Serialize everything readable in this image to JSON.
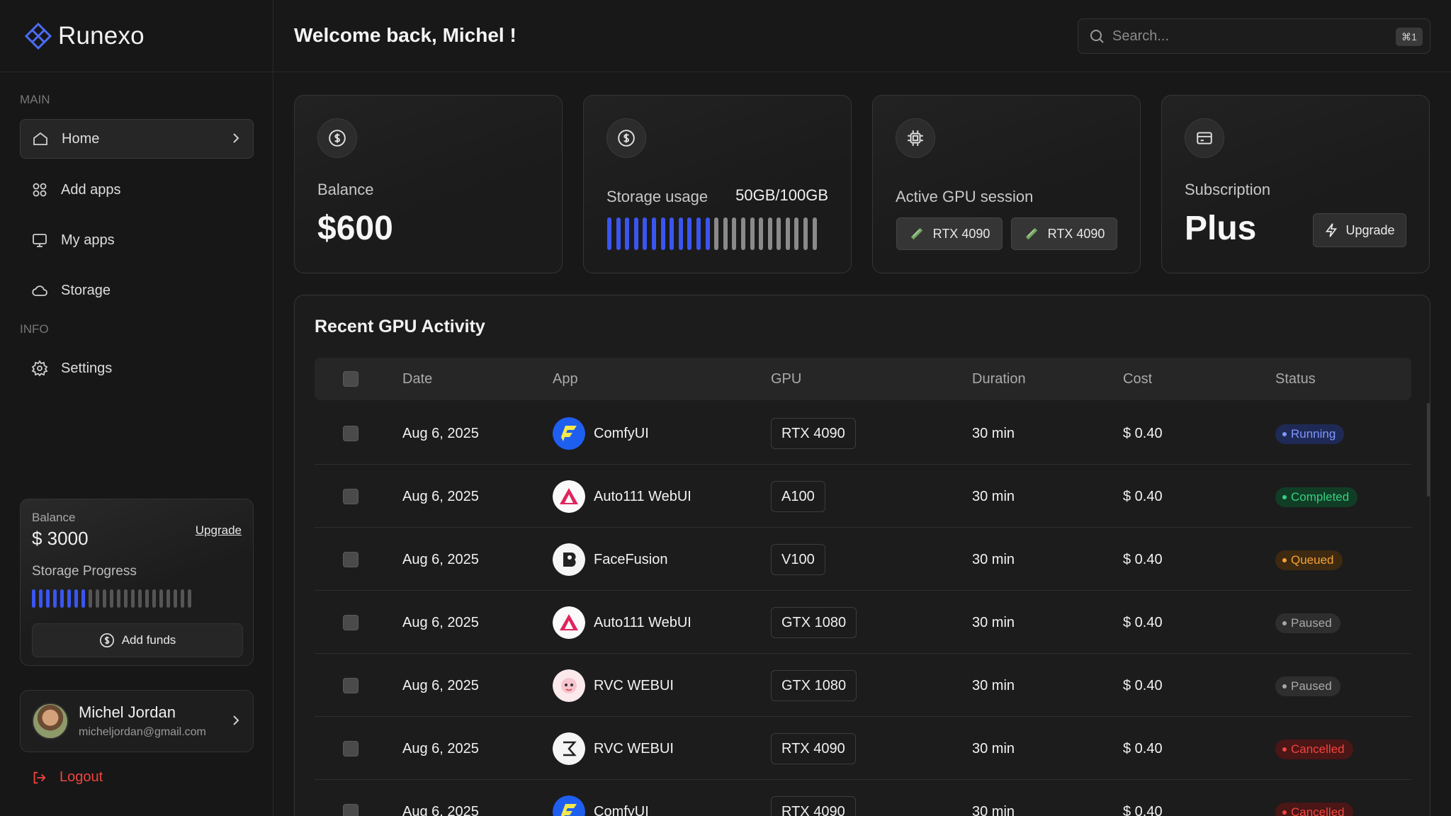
{
  "brand": {
    "name": "Runexo"
  },
  "header": {
    "welcome": "Welcome back, Michel !",
    "search_placeholder": "Search...",
    "search_shortcut": "⌘1"
  },
  "sidebar": {
    "main_label": "MAIN",
    "info_label": "INFO",
    "items": [
      {
        "label": "Home",
        "icon": "home-icon",
        "active": true
      },
      {
        "label": "Add apps",
        "icon": "grid-icon"
      },
      {
        "label": "My apps",
        "icon": "monitor-icon"
      },
      {
        "label": "Storage",
        "icon": "cloud-icon"
      },
      {
        "label": "Settings",
        "icon": "gear-icon"
      }
    ],
    "balance_card": {
      "label": "Balance",
      "amount": "$ 3000",
      "upgrade": "Upgrade",
      "storage_label": "Storage Progress",
      "storage_fraction": 0.35,
      "add_funds": "Add funds"
    },
    "user": {
      "name": "Michel Jordan",
      "email": "micheljordan@gmail.com"
    },
    "logout": "Logout"
  },
  "stats": {
    "balance": {
      "label": "Balance",
      "value": "$600"
    },
    "storage": {
      "label": "Storage usage",
      "value": "50GB/100GB",
      "fraction": 0.5
    },
    "gpu": {
      "label": "Active GPU session",
      "chips": [
        "RTX 4090",
        "RTX 4090"
      ]
    },
    "subscription": {
      "label": "Subscription",
      "value": "Plus",
      "upgrade": "Upgrade"
    }
  },
  "activity": {
    "title": "Recent GPU Activity",
    "columns": [
      "Date",
      "App",
      "GPU",
      "Duration",
      "Cost",
      "Status"
    ],
    "rows": [
      {
        "date": "Aug 6, 2025",
        "app": "ComfyUI",
        "app_icon": "comfyui-logo-icon",
        "gpu": "RTX 4090",
        "duration": "30 min",
        "cost": "$ 0.40",
        "status": "Running"
      },
      {
        "date": "Aug 6, 2025",
        "app": "Auto111 WebUI",
        "app_icon": "auto111-logo-icon",
        "gpu": "A100",
        "duration": "30 min",
        "cost": "$ 0.40",
        "status": "Completed"
      },
      {
        "date": "Aug 6, 2025",
        "app": "FaceFusion",
        "app_icon": "facefusion-logo-icon",
        "gpu": "V100",
        "duration": "30 min",
        "cost": "$ 0.40",
        "status": "Queued"
      },
      {
        "date": "Aug 6, 2025",
        "app": "Auto111 WebUI",
        "app_icon": "auto111-logo-icon",
        "gpu": "GTX 1080",
        "duration": "30 min",
        "cost": "$ 0.40",
        "status": "Paused"
      },
      {
        "date": "Aug 6, 2025",
        "app": "RVC WEBUI",
        "app_icon": "rvc-logo-icon",
        "gpu": "GTX 1080",
        "duration": "30 min",
        "cost": "$ 0.40",
        "status": "Paused"
      },
      {
        "date": "Aug 6, 2025",
        "app": "RVC WEBUI",
        "app_icon": "rvc-alt-logo-icon",
        "gpu": "RTX 4090",
        "duration": "30 min",
        "cost": "$ 0.40",
        "status": "Cancelled"
      },
      {
        "date": "Aug 6, 2025",
        "app": "ComfyUI",
        "app_icon": "comfyui-logo-icon",
        "gpu": "RTX 4090",
        "duration": "30 min",
        "cost": "$ 0.40",
        "status": "Cancelled"
      }
    ]
  },
  "status_colors": {
    "Running": {
      "bg": "#1e2a55",
      "fg": "#7f96ff"
    },
    "Completed": {
      "bg": "#113d26",
      "fg": "#35d07f"
    },
    "Queued": {
      "bg": "#3d2a10",
      "fg": "#f5a236"
    },
    "Paused": {
      "bg": "#2e2e2e",
      "fg": "#a8a8a8"
    },
    "Cancelled": {
      "bg": "#4a1616",
      "fg": "#f2453f"
    }
  },
  "colors": {
    "accent": "#3b55f0",
    "danger": "#f0443e"
  }
}
